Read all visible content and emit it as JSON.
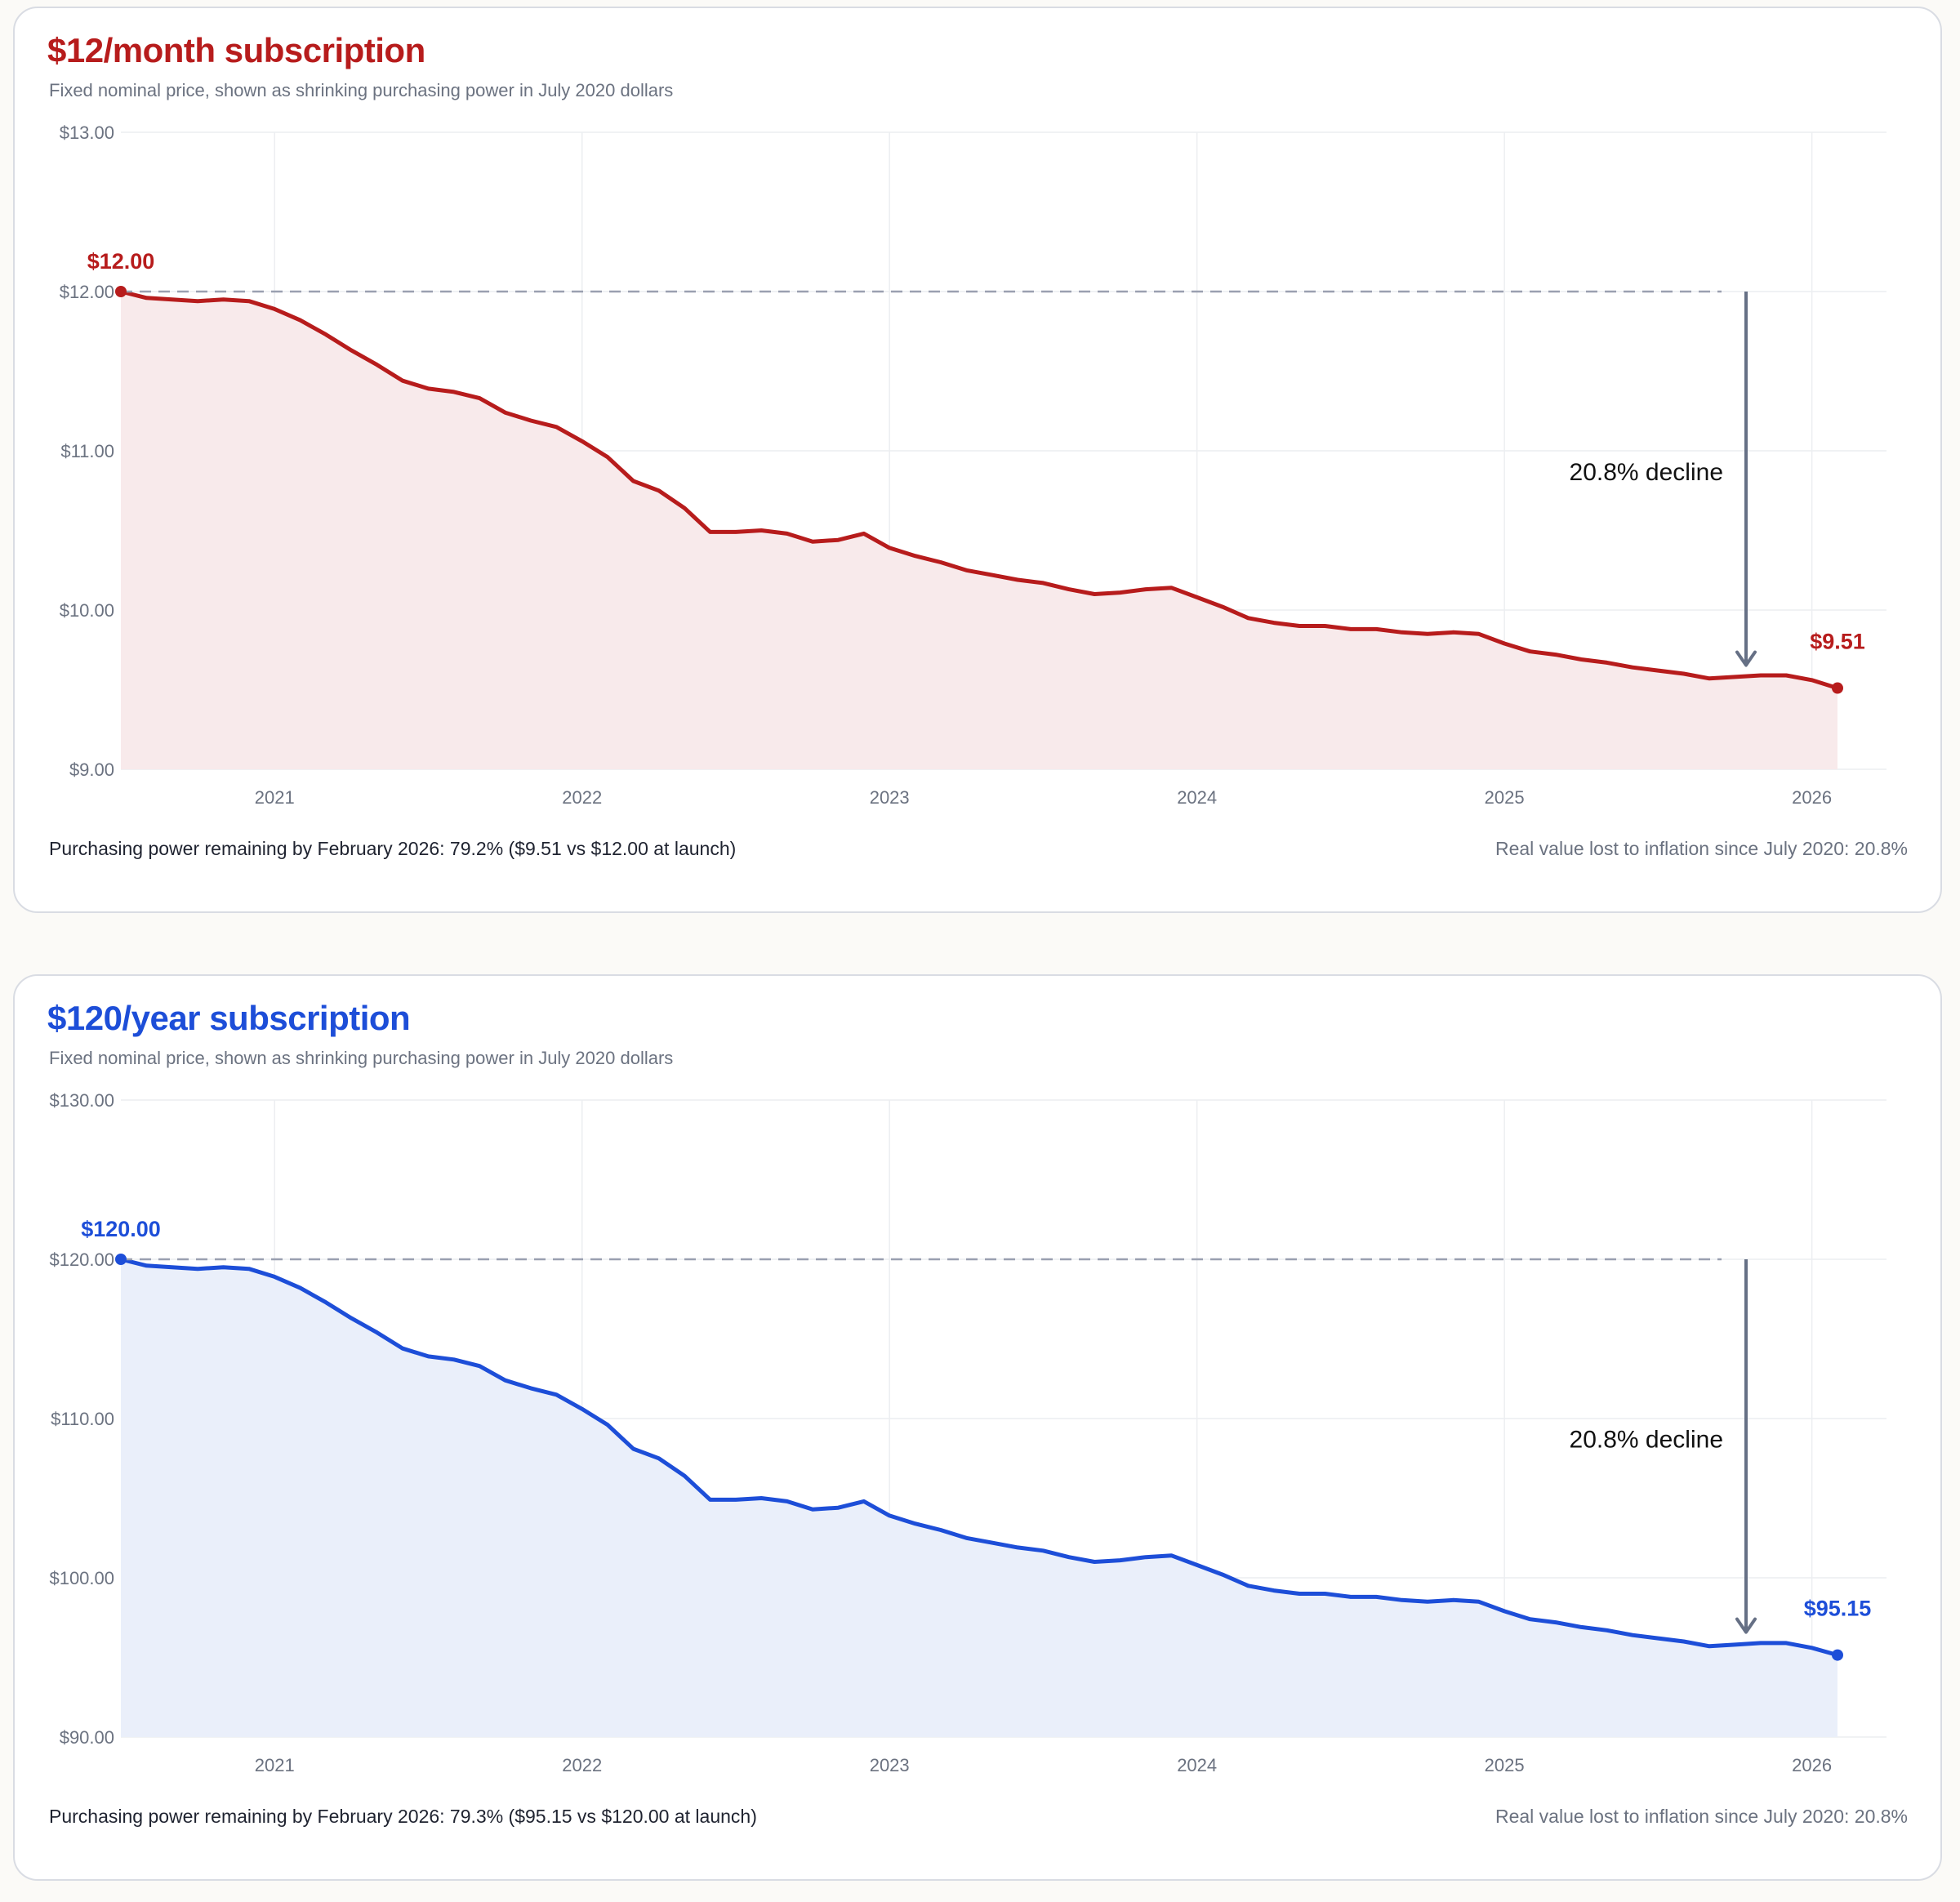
{
  "charts": [
    {
      "title": "$12/month subscription",
      "subtitle": "Fixed nominal price, shown as shrinking purchasing power in July 2020 dollars",
      "footer_left": "Purchasing power remaining by February 2026: 79.2% ($9.51 vs $12.00 at launch)",
      "footer_right": "Real value lost to inflation since July 2020: 20.8%",
      "decline_label": "20.8% decline",
      "start_label": "$12.00",
      "end_label": "$9.51",
      "color": "#b71c1c",
      "fill": "#f8eaeb"
    },
    {
      "title": "$120/year subscription",
      "subtitle": "Fixed nominal price, shown as shrinking purchasing power in July 2020 dollars",
      "footer_left": "Purchasing power remaining by February 2026: 79.3% ($95.15 vs $120.00 at launch)",
      "footer_right": "Real value lost to inflation since July 2020: 20.8%",
      "decline_label": "20.8% decline",
      "start_label": "$120.00",
      "end_label": "$95.15",
      "color": "#1d4ed8",
      "fill": "#eaeffa"
    }
  ],
  "chart_data": [
    {
      "type": "area",
      "title": "$12/month subscription",
      "x_start": "2020-07",
      "x_end": "2026-02",
      "x_ticks": [
        "2021",
        "2022",
        "2023",
        "2024",
        "2025",
        "2026"
      ],
      "ylim": [
        9,
        13
      ],
      "y_ticks": [
        "$9.00",
        "$10.00",
        "$11.00",
        "$12.00",
        "$13.00"
      ],
      "y_tick_values": [
        9,
        10,
        11,
        12,
        13
      ],
      "reference_value": 12.0,
      "grid": true,
      "values": [
        12.0,
        11.96,
        11.95,
        11.94,
        11.95,
        11.94,
        11.89,
        11.82,
        11.73,
        11.63,
        11.54,
        11.44,
        11.39,
        11.37,
        11.33,
        11.24,
        11.19,
        11.15,
        11.06,
        10.96,
        10.81,
        10.75,
        10.64,
        10.49,
        10.49,
        10.5,
        10.48,
        10.43,
        10.44,
        10.48,
        10.39,
        10.34,
        10.3,
        10.25,
        10.22,
        10.19,
        10.17,
        10.13,
        10.1,
        10.11,
        10.13,
        10.14,
        10.08,
        10.02,
        9.95,
        9.92,
        9.9,
        9.9,
        9.88,
        9.88,
        9.86,
        9.85,
        9.86,
        9.85,
        9.79,
        9.74,
        9.72,
        9.69,
        9.67,
        9.64,
        9.62,
        9.6,
        9.57,
        9.58,
        9.59,
        9.59,
        9.56,
        9.51
      ]
    },
    {
      "type": "area",
      "title": "$120/year subscription",
      "x_start": "2020-07",
      "x_end": "2026-02",
      "x_ticks": [
        "2021",
        "2022",
        "2023",
        "2024",
        "2025",
        "2026"
      ],
      "ylim": [
        90,
        130
      ],
      "y_ticks": [
        "$90.00",
        "$100.00",
        "$110.00",
        "$120.00",
        "$130.00"
      ],
      "y_tick_values": [
        90,
        100,
        110,
        120,
        130
      ],
      "reference_value": 120.0,
      "grid": true,
      "values": [
        120.0,
        119.6,
        119.5,
        119.4,
        119.5,
        119.4,
        118.9,
        118.2,
        117.3,
        116.3,
        115.4,
        114.4,
        113.9,
        113.7,
        113.3,
        112.4,
        111.9,
        111.5,
        110.6,
        109.6,
        108.1,
        107.5,
        106.4,
        104.9,
        104.9,
        105.0,
        104.8,
        104.3,
        104.4,
        104.8,
        103.9,
        103.4,
        103.0,
        102.5,
        102.2,
        101.9,
        101.7,
        101.3,
        101.0,
        101.1,
        101.3,
        101.4,
        100.8,
        100.2,
        99.5,
        99.2,
        99.0,
        99.0,
        98.8,
        98.8,
        98.6,
        98.5,
        98.6,
        98.5,
        97.9,
        97.4,
        97.2,
        96.9,
        96.7,
        96.4,
        96.2,
        96.0,
        95.7,
        95.8,
        95.9,
        95.9,
        95.6,
        95.15
      ]
    }
  ]
}
